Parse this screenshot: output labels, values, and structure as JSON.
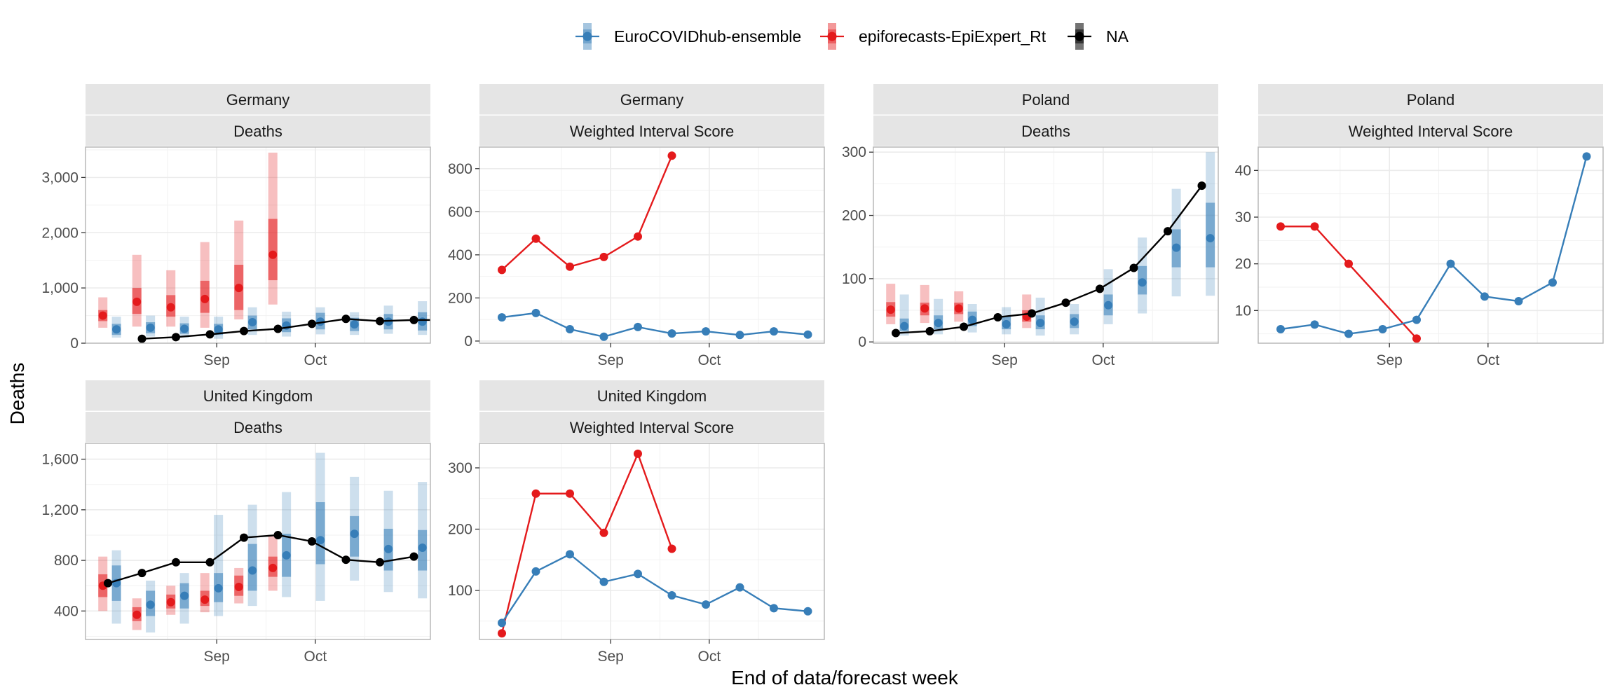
{
  "colors": {
    "ensemble": "#377eb8",
    "epiexpert": "#e41a1c",
    "observed": "#000000",
    "strip_bg": "#e5e5e5",
    "panel_border": "#b3b3b3",
    "grid": "#ebebeb"
  },
  "legend": {
    "items": [
      {
        "key": "ensemble",
        "label": "EuroCOVIDhub-ensemble"
      },
      {
        "key": "epiexpert",
        "label": "epiforecasts-EpiExpert_Rt"
      },
      {
        "key": "observed",
        "label": "NA"
      }
    ],
    "placement": "top"
  },
  "axes": {
    "xlabel": "End of data/forecast week",
    "ylabel": "Deaths",
    "x_tick_labels": [
      "Sep",
      "Oct"
    ]
  },
  "chart_data": [
    {
      "type": "line",
      "strip": [
        "Germany",
        "Deaths"
      ],
      "ylim": [
        0,
        3550
      ],
      "y_ticks": [
        0,
        1000,
        2000,
        3000
      ],
      "y_tick_labels": [
        "0",
        "1,000",
        "2,000",
        "3,000"
      ],
      "observed": {
        "weeks": [
          1,
          2,
          3,
          4,
          5,
          6,
          7,
          8,
          9,
          10
        ],
        "values": [
          80,
          110,
          160,
          220,
          260,
          350,
          440,
          400,
          420,
          420
        ]
      },
      "ensemble": {
        "weeks": [
          0.25,
          1.25,
          2.25,
          3.25,
          4.25,
          5.25,
          6.25,
          7.25,
          8.25,
          9.25
        ],
        "values": [
          250,
          280,
          260,
          250,
          380,
          320,
          390,
          340,
          390,
          390
        ],
        "inner": [
          [
            150,
            350
          ],
          [
            180,
            380
          ],
          [
            170,
            360
          ],
          [
            150,
            350
          ],
          [
            250,
            500
          ],
          [
            200,
            450
          ],
          [
            250,
            550
          ],
          [
            220,
            460
          ],
          [
            250,
            530
          ],
          [
            230,
            560
          ]
        ],
        "outer": [
          [
            100,
            480
          ],
          [
            120,
            500
          ],
          [
            100,
            480
          ],
          [
            80,
            480
          ],
          [
            150,
            650
          ],
          [
            120,
            570
          ],
          [
            160,
            650
          ],
          [
            150,
            560
          ],
          [
            170,
            680
          ],
          [
            150,
            760
          ]
        ]
      },
      "epiexpert": {
        "weeks": [
          -0.15,
          0.85,
          1.85,
          2.85,
          3.85,
          4.85
        ],
        "values": [
          500,
          750,
          650,
          800,
          1000,
          1600
        ],
        "inner": [
          [
            400,
            600
          ],
          [
            530,
            1000
          ],
          [
            480,
            870
          ],
          [
            550,
            1130
          ],
          [
            600,
            1420
          ],
          [
            1140,
            2250
          ]
        ],
        "outer": [
          [
            280,
            830
          ],
          [
            300,
            1600
          ],
          [
            300,
            1320
          ],
          [
            280,
            1830
          ],
          [
            430,
            2220
          ],
          [
            700,
            3450
          ]
        ]
      }
    },
    {
      "type": "line",
      "strip": [
        "Germany",
        "Weighted Interval Score"
      ],
      "ylim": [
        -10,
        900
      ],
      "y_ticks": [
        0,
        200,
        400,
        600,
        800
      ],
      "y_tick_labels": [
        "0",
        "200",
        "400",
        "600",
        "800"
      ],
      "ensemble": {
        "weeks": [
          0,
          1,
          2,
          3,
          4,
          5,
          6,
          7,
          8,
          9
        ],
        "values": [
          110,
          130,
          55,
          20,
          65,
          35,
          45,
          28,
          45,
          30
        ]
      },
      "epiexpert": {
        "weeks": [
          0,
          1,
          2,
          3,
          4,
          5
        ],
        "values": [
          330,
          475,
          345,
          390,
          485,
          860
        ]
      }
    },
    {
      "type": "line",
      "strip": [
        "Poland",
        "Deaths"
      ],
      "ylim": [
        -2,
        308
      ],
      "y_ticks": [
        0,
        100,
        200,
        300
      ],
      "y_tick_labels": [
        "0",
        "100",
        "200",
        "300"
      ],
      "observed": {
        "weeks": [
          0,
          1,
          2,
          3,
          4,
          5,
          6,
          7,
          8,
          9
        ],
        "values": [
          14,
          17,
          24,
          39,
          45,
          62,
          84,
          117,
          175,
          247
        ]
      },
      "ensemble": {
        "weeks": [
          0.25,
          1.25,
          2.25,
          3.25,
          4.25,
          5.25,
          6.25,
          7.25,
          8.25,
          9.25
        ],
        "values": [
          25,
          30,
          35,
          28,
          30,
          32,
          58,
          94,
          149,
          164
        ],
        "inner": [
          [
            17,
            37
          ],
          [
            20,
            42
          ],
          [
            25,
            48
          ],
          [
            20,
            40
          ],
          [
            20,
            42
          ],
          [
            22,
            44
          ],
          [
            42,
            75
          ],
          [
            75,
            120
          ],
          [
            118,
            178
          ],
          [
            118,
            220
          ]
        ],
        "outer": [
          [
            10,
            75
          ],
          [
            12,
            68
          ],
          [
            15,
            60
          ],
          [
            12,
            55
          ],
          [
            10,
            70
          ],
          [
            12,
            60
          ],
          [
            28,
            115
          ],
          [
            45,
            165
          ],
          [
            72,
            242
          ],
          [
            73,
            300
          ]
        ]
      },
      "epiexpert": {
        "weeks": [
          -0.15,
          0.85,
          1.85,
          3.85
        ],
        "values": [
          51,
          53,
          53,
          40
        ],
        "inner": [
          [
            40,
            63
          ],
          [
            42,
            62
          ],
          [
            44,
            62
          ],
          [
            32,
            50
          ]
        ],
        "outer": [
          [
            28,
            92
          ],
          [
            30,
            90
          ],
          [
            32,
            80
          ],
          [
            22,
            75
          ]
        ]
      }
    },
    {
      "type": "line",
      "strip": [
        "Poland",
        "Weighted Interval Score"
      ],
      "ylim": [
        3,
        45
      ],
      "y_ticks": [
        10,
        20,
        30,
        40
      ],
      "y_tick_labels": [
        "10",
        "20",
        "30",
        "40"
      ],
      "ensemble": {
        "weeks": [
          0,
          1,
          2,
          3,
          4,
          5,
          6,
          7,
          8,
          9
        ],
        "values": [
          6,
          7,
          5,
          6,
          8,
          20,
          13,
          12,
          16,
          43
        ]
      },
      "epiexpert": {
        "weeks": [
          0,
          1,
          2,
          4
        ],
        "values": [
          28,
          28,
          20,
          4
        ]
      }
    },
    {
      "type": "line",
      "strip": [
        "United Kingdom",
        "Deaths"
      ],
      "ylim": [
        175,
        1725
      ],
      "y_ticks": [
        400,
        800,
        1200,
        1600
      ],
      "y_tick_labels": [
        "400",
        "800",
        "1,200",
        "1,600"
      ],
      "observed": {
        "weeks": [
          0,
          1,
          2,
          3,
          4,
          5,
          6,
          7,
          8,
          9
        ],
        "values": [
          620,
          700,
          785,
          785,
          980,
          1000,
          950,
          805,
          785,
          830
        ]
      },
      "ensemble": {
        "weeks": [
          0.25,
          1.25,
          2.25,
          3.25,
          4.25,
          5.25,
          6.25,
          7.25,
          8.25,
          9.25
        ],
        "values": [
          620,
          450,
          520,
          580,
          720,
          840,
          960,
          1010,
          890,
          900
        ],
        "inner": [
          [
            480,
            760
          ],
          [
            360,
            560
          ],
          [
            420,
            620
          ],
          [
            470,
            700
          ],
          [
            560,
            930
          ],
          [
            670,
            1010
          ],
          [
            770,
            1260
          ],
          [
            830,
            1150
          ],
          [
            720,
            1050
          ],
          [
            720,
            1040
          ]
        ],
        "outer": [
          [
            300,
            880
          ],
          [
            230,
            640
          ],
          [
            300,
            700
          ],
          [
            360,
            1160
          ],
          [
            440,
            1240
          ],
          [
            510,
            1340
          ],
          [
            480,
            1650
          ],
          [
            640,
            1460
          ],
          [
            550,
            1350
          ],
          [
            500,
            1420
          ]
        ]
      },
      "epiexpert": {
        "weeks": [
          -0.15,
          0.85,
          1.85,
          2.85,
          3.85,
          4.85
        ],
        "values": [
          600,
          370,
          470,
          490,
          590,
          740
        ],
        "inner": [
          [
            510,
            690
          ],
          [
            320,
            430
          ],
          [
            420,
            530
          ],
          [
            440,
            560
          ],
          [
            520,
            680
          ],
          [
            670,
            830
          ]
        ],
        "outer": [
          [
            400,
            830
          ],
          [
            250,
            500
          ],
          [
            370,
            600
          ],
          [
            390,
            700
          ],
          [
            460,
            740
          ],
          [
            560,
            1000
          ]
        ]
      }
    },
    {
      "type": "line",
      "strip": [
        "United Kingdom",
        "Weighted Interval Score"
      ],
      "ylim": [
        20,
        340
      ],
      "y_ticks": [
        100,
        200,
        300
      ],
      "y_tick_labels": [
        "100",
        "200",
        "300"
      ],
      "ensemble": {
        "weeks": [
          0,
          1,
          2,
          3,
          4,
          5,
          6,
          7,
          8,
          9
        ],
        "values": [
          47,
          131,
          159,
          114,
          127,
          92,
          77,
          105,
          71,
          66
        ]
      },
      "epiexpert": {
        "weeks": [
          0,
          1,
          2,
          3,
          4,
          5
        ],
        "values": [
          30,
          258,
          258,
          194,
          323,
          168
        ]
      }
    }
  ]
}
